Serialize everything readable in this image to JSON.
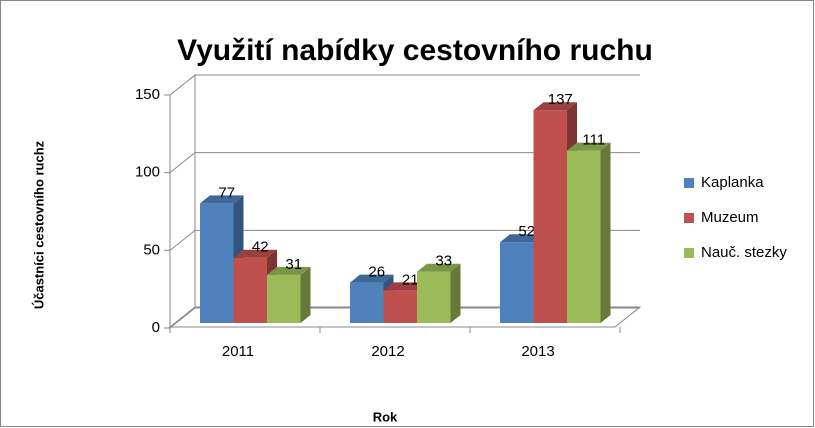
{
  "chart_data": {
    "type": "bar3d",
    "title": "Využití nabídky cestovního ruchu",
    "y_label": "Účastníci cestovního ruchz",
    "x_label": "Rok",
    "categories": [
      "2011",
      "2012",
      "2013"
    ],
    "series": [
      {
        "name": "Kaplanka",
        "color": "#4f81bd",
        "values": [
          77,
          26,
          52
        ]
      },
      {
        "name": "Muzeum",
        "color": "#c0504d",
        "values": [
          42,
          21,
          137
        ]
      },
      {
        "name": "Nauč. stezky",
        "color": "#9bbb59",
        "values": [
          31,
          33,
          111
        ]
      }
    ],
    "ylim": [
      0,
      150
    ],
    "yticks": [
      0,
      50,
      100,
      150
    ],
    "grid": true,
    "legend": "right"
  }
}
